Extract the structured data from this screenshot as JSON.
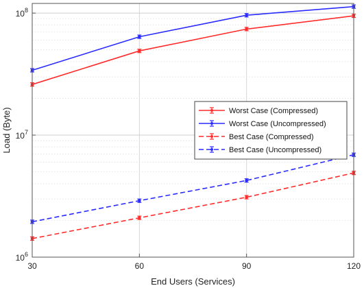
{
  "chart_data": {
    "type": "line",
    "title": "",
    "xlabel": "End Users (Services)",
    "ylabel": "Load (Byte)",
    "x": [
      30,
      60,
      90,
      120
    ],
    "x_ticks": [
      "30",
      "60",
      "90",
      "120"
    ],
    "xlim": [
      30,
      120
    ],
    "y_scale": "log",
    "ylim": [
      1000000,
      120000000
    ],
    "y_ticks": [
      {
        "value": 1000000,
        "base": "10",
        "exp": "6"
      },
      {
        "value": 10000000,
        "base": "10",
        "exp": "7"
      },
      {
        "value": 100000000,
        "base": "10",
        "exp": "8"
      }
    ],
    "grid": true,
    "legend_position": "right-center",
    "series": [
      {
        "name": "Worst Case (Compressed)",
        "color": "#ff2a2a",
        "dash": "solid",
        "values": [
          26000000,
          49000000,
          74000000,
          95000000
        ]
      },
      {
        "name": "Worst Case (Uncompressed)",
        "color": "#2a2aff",
        "dash": "solid",
        "values": [
          34000000,
          64000000,
          96000000,
          113000000
        ]
      },
      {
        "name": "Best Case (Compressed)",
        "color": "#ff2a2a",
        "dash": "dashed",
        "values": [
          1420000,
          2100000,
          3100000,
          4900000
        ]
      },
      {
        "name": "Best Case (Uncompressed)",
        "color": "#2a2aff",
        "dash": "dashed",
        "values": [
          1950000,
          2900000,
          4250000,
          6900000
        ]
      }
    ]
  }
}
